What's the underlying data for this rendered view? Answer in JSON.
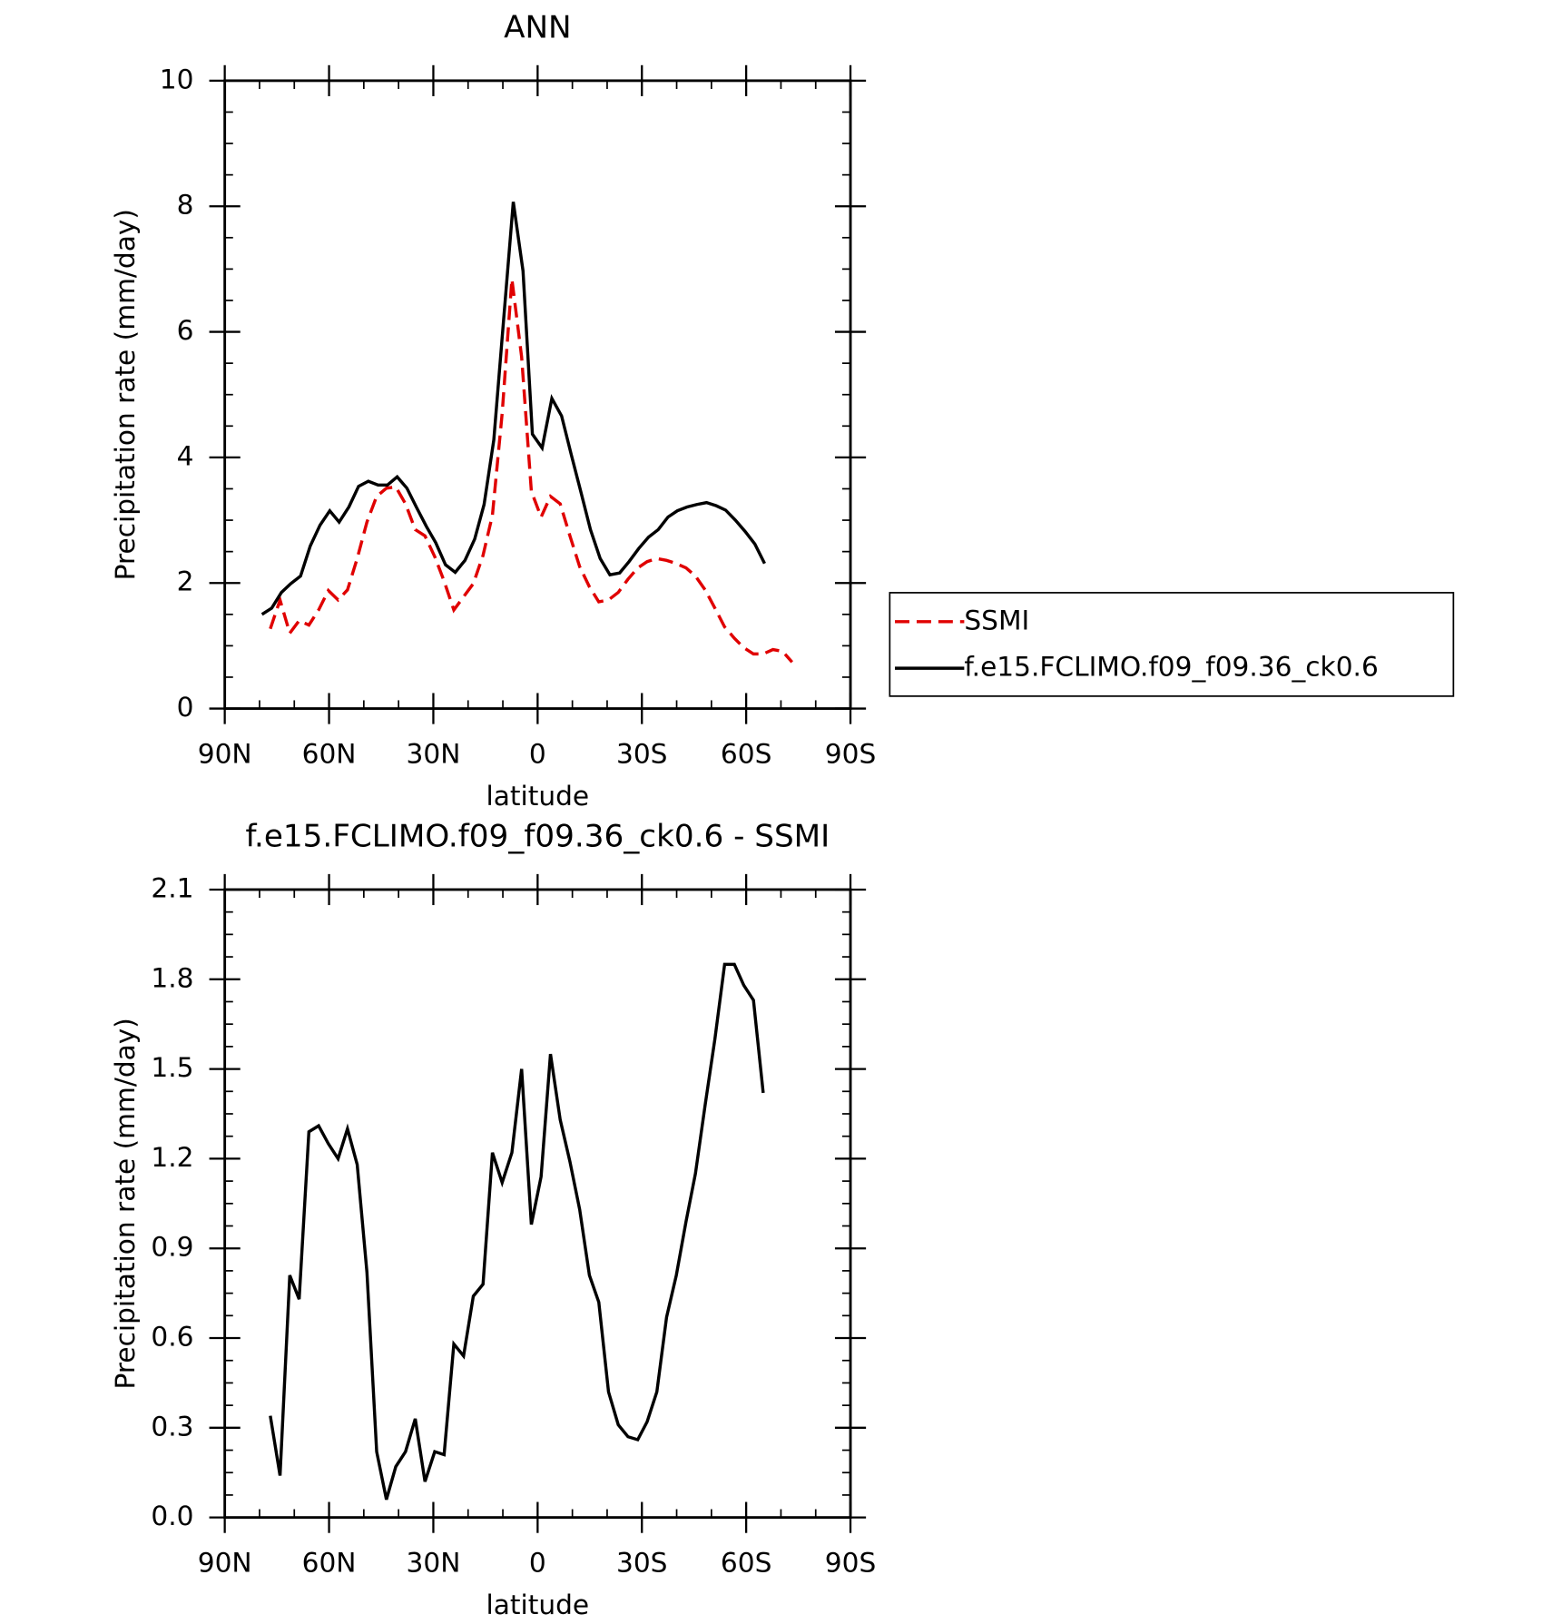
{
  "chart_data": [
    {
      "type": "line",
      "title": "ANN",
      "xlabel": "latitude",
      "ylabel": "Precipitation rate (mm/day)",
      "xlim": [
        90,
        -90
      ],
      "xticks": [
        {
          "value": 90,
          "label": "90N"
        },
        {
          "value": 60,
          "label": "60N"
        },
        {
          "value": 30,
          "label": "30N"
        },
        0,
        {
          "value": -30,
          "label": "30S"
        },
        {
          "value": -60,
          "label": "60S"
        },
        {
          "value": -90,
          "label": "90S"
        }
      ],
      "ylim": [
        0,
        10
      ],
      "yticks": [
        0,
        2,
        4,
        6,
        8,
        10
      ],
      "legend": "outside-right",
      "series": [
        {
          "name": "SSMI",
          "color": "#e00000",
          "dash": true,
          "x": [
            76.9,
            74.1,
            71.3,
            68.6,
            65.8,
            63.0,
            60.2,
            57.4,
            54.7,
            51.9,
            49.1,
            46.3,
            43.5,
            40.8,
            38.0,
            35.2,
            32.4,
            29.6,
            26.9,
            24.1,
            21.3,
            18.5,
            15.7,
            13.0,
            10.2,
            7.4,
            4.6,
            1.8,
            -1.0,
            -3.7,
            -6.5,
            -9.3,
            -12.1,
            -14.9,
            -17.6,
            -20.4,
            -23.2,
            -26.0,
            -28.8,
            -31.5,
            -34.3,
            -37.1,
            -39.9,
            -42.7,
            -45.4,
            -48.2,
            -51.0,
            -53.8,
            -56.6,
            -59.3,
            -62.1,
            -64.9,
            -67.7,
            -70.5,
            -73.2
          ],
          "values": [
            1.27,
            1.73,
            1.2,
            1.4,
            1.33,
            1.57,
            1.88,
            1.73,
            1.89,
            2.39,
            2.97,
            3.38,
            3.51,
            3.53,
            3.26,
            2.85,
            2.75,
            2.42,
            2.03,
            1.57,
            1.78,
            1.99,
            2.44,
            3.08,
            4.7,
            6.84,
            5.6,
            3.46,
            3.05,
            3.38,
            3.26,
            2.75,
            2.26,
            1.94,
            1.7,
            1.73,
            1.85,
            2.06,
            2.24,
            2.34,
            2.39,
            2.36,
            2.31,
            2.24,
            2.11,
            1.89,
            1.6,
            1.3,
            1.12,
            0.97,
            0.87,
            0.87,
            0.94,
            0.91,
            0.74
          ]
        },
        {
          "name": "f.e15.FCLIMO.f09_f09.36_ck0.6",
          "color": "#000000",
          "dash": false,
          "x": [
            79.3,
            76.5,
            73.7,
            71.0,
            68.2,
            65.4,
            62.6,
            59.8,
            57.1,
            54.3,
            51.5,
            48.7,
            45.9,
            43.2,
            40.4,
            37.6,
            34.8,
            32.0,
            29.3,
            26.5,
            23.7,
            20.9,
            18.1,
            15.4,
            12.6,
            9.8,
            7.0,
            4.2,
            1.5,
            -1.3,
            -4.1,
            -6.9,
            -9.7,
            -12.4,
            -15.2,
            -18.0,
            -20.8,
            -23.6,
            -26.3,
            -29.1,
            -31.9,
            -34.7,
            -37.5,
            -40.2,
            -43.0,
            -45.8,
            -48.6,
            -51.4,
            -54.1,
            -56.9,
            -59.7,
            -62.5,
            -65.3
          ],
          "values": [
            1.5,
            1.6,
            1.85,
            1.99,
            2.11,
            2.59,
            2.92,
            3.15,
            2.97,
            3.21,
            3.54,
            3.62,
            3.56,
            3.56,
            3.69,
            3.51,
            3.2,
            2.9,
            2.64,
            2.29,
            2.17,
            2.36,
            2.7,
            3.25,
            4.28,
            6.18,
            8.07,
            6.97,
            4.37,
            4.15,
            4.94,
            4.66,
            4.04,
            3.46,
            2.85,
            2.39,
            2.13,
            2.16,
            2.34,
            2.55,
            2.73,
            2.85,
            3.05,
            3.15,
            3.21,
            3.25,
            3.28,
            3.23,
            3.16,
            3.0,
            2.82,
            2.62,
            2.31
          ]
        }
      ]
    },
    {
      "type": "line",
      "title": "f.e15.FCLIMO.f09_f09.36_ck0.6 - SSMI",
      "xlabel": "latitude",
      "ylabel": "Precipitation rate (mm/day)",
      "xlim": [
        90,
        -90
      ],
      "xticks": [
        {
          "value": 90,
          "label": "90N"
        },
        {
          "value": 60,
          "label": "60N"
        },
        {
          "value": 30,
          "label": "30N"
        },
        0,
        {
          "value": -30,
          "label": "30S"
        },
        {
          "value": -60,
          "label": "60S"
        },
        {
          "value": -90,
          "label": "90S"
        }
      ],
      "ylim": [
        0,
        2.1
      ],
      "yticks": [
        {
          "value": 0,
          "label": "0.0"
        },
        0.3,
        0.6,
        0.9,
        1.2,
        1.5,
        1.8,
        2.1
      ],
      "x": [
        76.9,
        74.1,
        71.3,
        68.6,
        65.8,
        63.0,
        60.2,
        57.4,
        54.7,
        51.9,
        49.1,
        46.3,
        43.5,
        40.8,
        38.0,
        35.2,
        32.4,
        29.6,
        26.9,
        24.1,
        21.3,
        18.5,
        15.7,
        13.0,
        10.2,
        7.4,
        4.6,
        1.8,
        -1.0,
        -3.7,
        -6.5,
        -9.3,
        -12.1,
        -14.9,
        -17.6,
        -20.4,
        -23.2,
        -26.0,
        -28.8,
        -31.5,
        -34.3,
        -37.1,
        -39.9,
        -42.7,
        -45.4,
        -48.2,
        -51.0,
        -53.8,
        -56.6,
        -59.3,
        -62.1,
        -64.9
      ],
      "values": [
        0.34,
        0.14,
        0.81,
        0.73,
        1.29,
        1.31,
        1.25,
        1.2,
        1.3,
        1.18,
        0.82,
        0.22,
        0.06,
        0.17,
        0.22,
        0.33,
        0.12,
        0.22,
        0.21,
        0.58,
        0.54,
        0.74,
        0.78,
        1.22,
        1.12,
        1.22,
        1.5,
        0.98,
        1.14,
        1.55,
        1.33,
        1.19,
        1.03,
        0.81,
        0.72,
        0.42,
        0.31,
        0.27,
        0.26,
        0.32,
        0.42,
        0.67,
        0.81,
        0.99,
        1.15,
        1.38,
        1.6,
        1.85,
        1.85,
        1.78,
        1.73,
        1.42
      ],
      "color": "#000000"
    }
  ]
}
